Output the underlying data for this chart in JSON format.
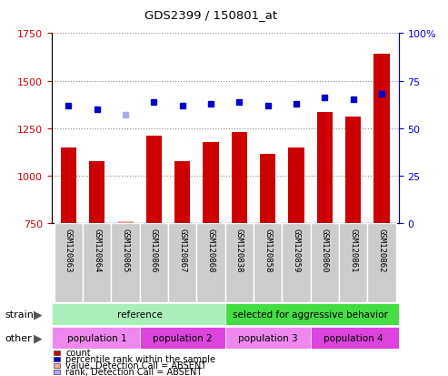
{
  "title": "GDS2399 / 150801_at",
  "samples": [
    "GSM120863",
    "GSM120864",
    "GSM120865",
    "GSM120866",
    "GSM120867",
    "GSM120868",
    "GSM120838",
    "GSM120858",
    "GSM120859",
    "GSM120860",
    "GSM120861",
    "GSM120862"
  ],
  "counts": [
    1150,
    1075,
    null,
    1210,
    1075,
    1175,
    1230,
    1115,
    1150,
    1335,
    1310,
    1640
  ],
  "counts_absent": [
    null,
    null,
    760,
    null,
    null,
    null,
    null,
    null,
    null,
    null,
    null,
    null
  ],
  "percentile_ranks": [
    62,
    60,
    null,
    64,
    62,
    63,
    64,
    62,
    63,
    66,
    65,
    68
  ],
  "percentile_absent": [
    null,
    null,
    57,
    null,
    null,
    null,
    null,
    null,
    null,
    null,
    null,
    null
  ],
  "ylim_left": [
    750,
    1750
  ],
  "ylim_right": [
    0,
    100
  ],
  "yticks_left": [
    750,
    1000,
    1250,
    1500,
    1750
  ],
  "yticks_right": [
    0,
    25,
    50,
    75,
    100
  ],
  "bar_color": "#cc0000",
  "bar_absent_color": "#ffaaaa",
  "dot_color": "#0000cc",
  "dot_absent_color": "#aaaaee",
  "strain_groups": [
    {
      "label": "reference",
      "start": 0,
      "end": 6,
      "color": "#aaeebb"
    },
    {
      "label": "selected for aggressive behavior",
      "start": 6,
      "end": 12,
      "color": "#44dd44"
    }
  ],
  "other_groups": [
    {
      "label": "population 1",
      "start": 0,
      "end": 3,
      "color": "#ee88ee"
    },
    {
      "label": "population 2",
      "start": 3,
      "end": 6,
      "color": "#dd44dd"
    },
    {
      "label": "population 3",
      "start": 6,
      "end": 9,
      "color": "#ee88ee"
    },
    {
      "label": "population 4",
      "start": 9,
      "end": 12,
      "color": "#dd44dd"
    }
  ],
  "legend_items": [
    {
      "label": "count",
      "color": "#cc0000"
    },
    {
      "label": "percentile rank within the sample",
      "color": "#0000cc"
    },
    {
      "label": "value, Detection Call = ABSENT",
      "color": "#ffaaaa"
    },
    {
      "label": "rank, Detection Call = ABSENT",
      "color": "#aaaaee"
    }
  ],
  "strain_label": "strain",
  "other_label": "other",
  "background_color": "#ffffff",
  "plot_bg_color": "#ffffff",
  "grid_color": "#888888",
  "tick_label_color_left": "#cc0000",
  "tick_label_color_right": "#0000cc",
  "xtick_bg_color": "#cccccc"
}
